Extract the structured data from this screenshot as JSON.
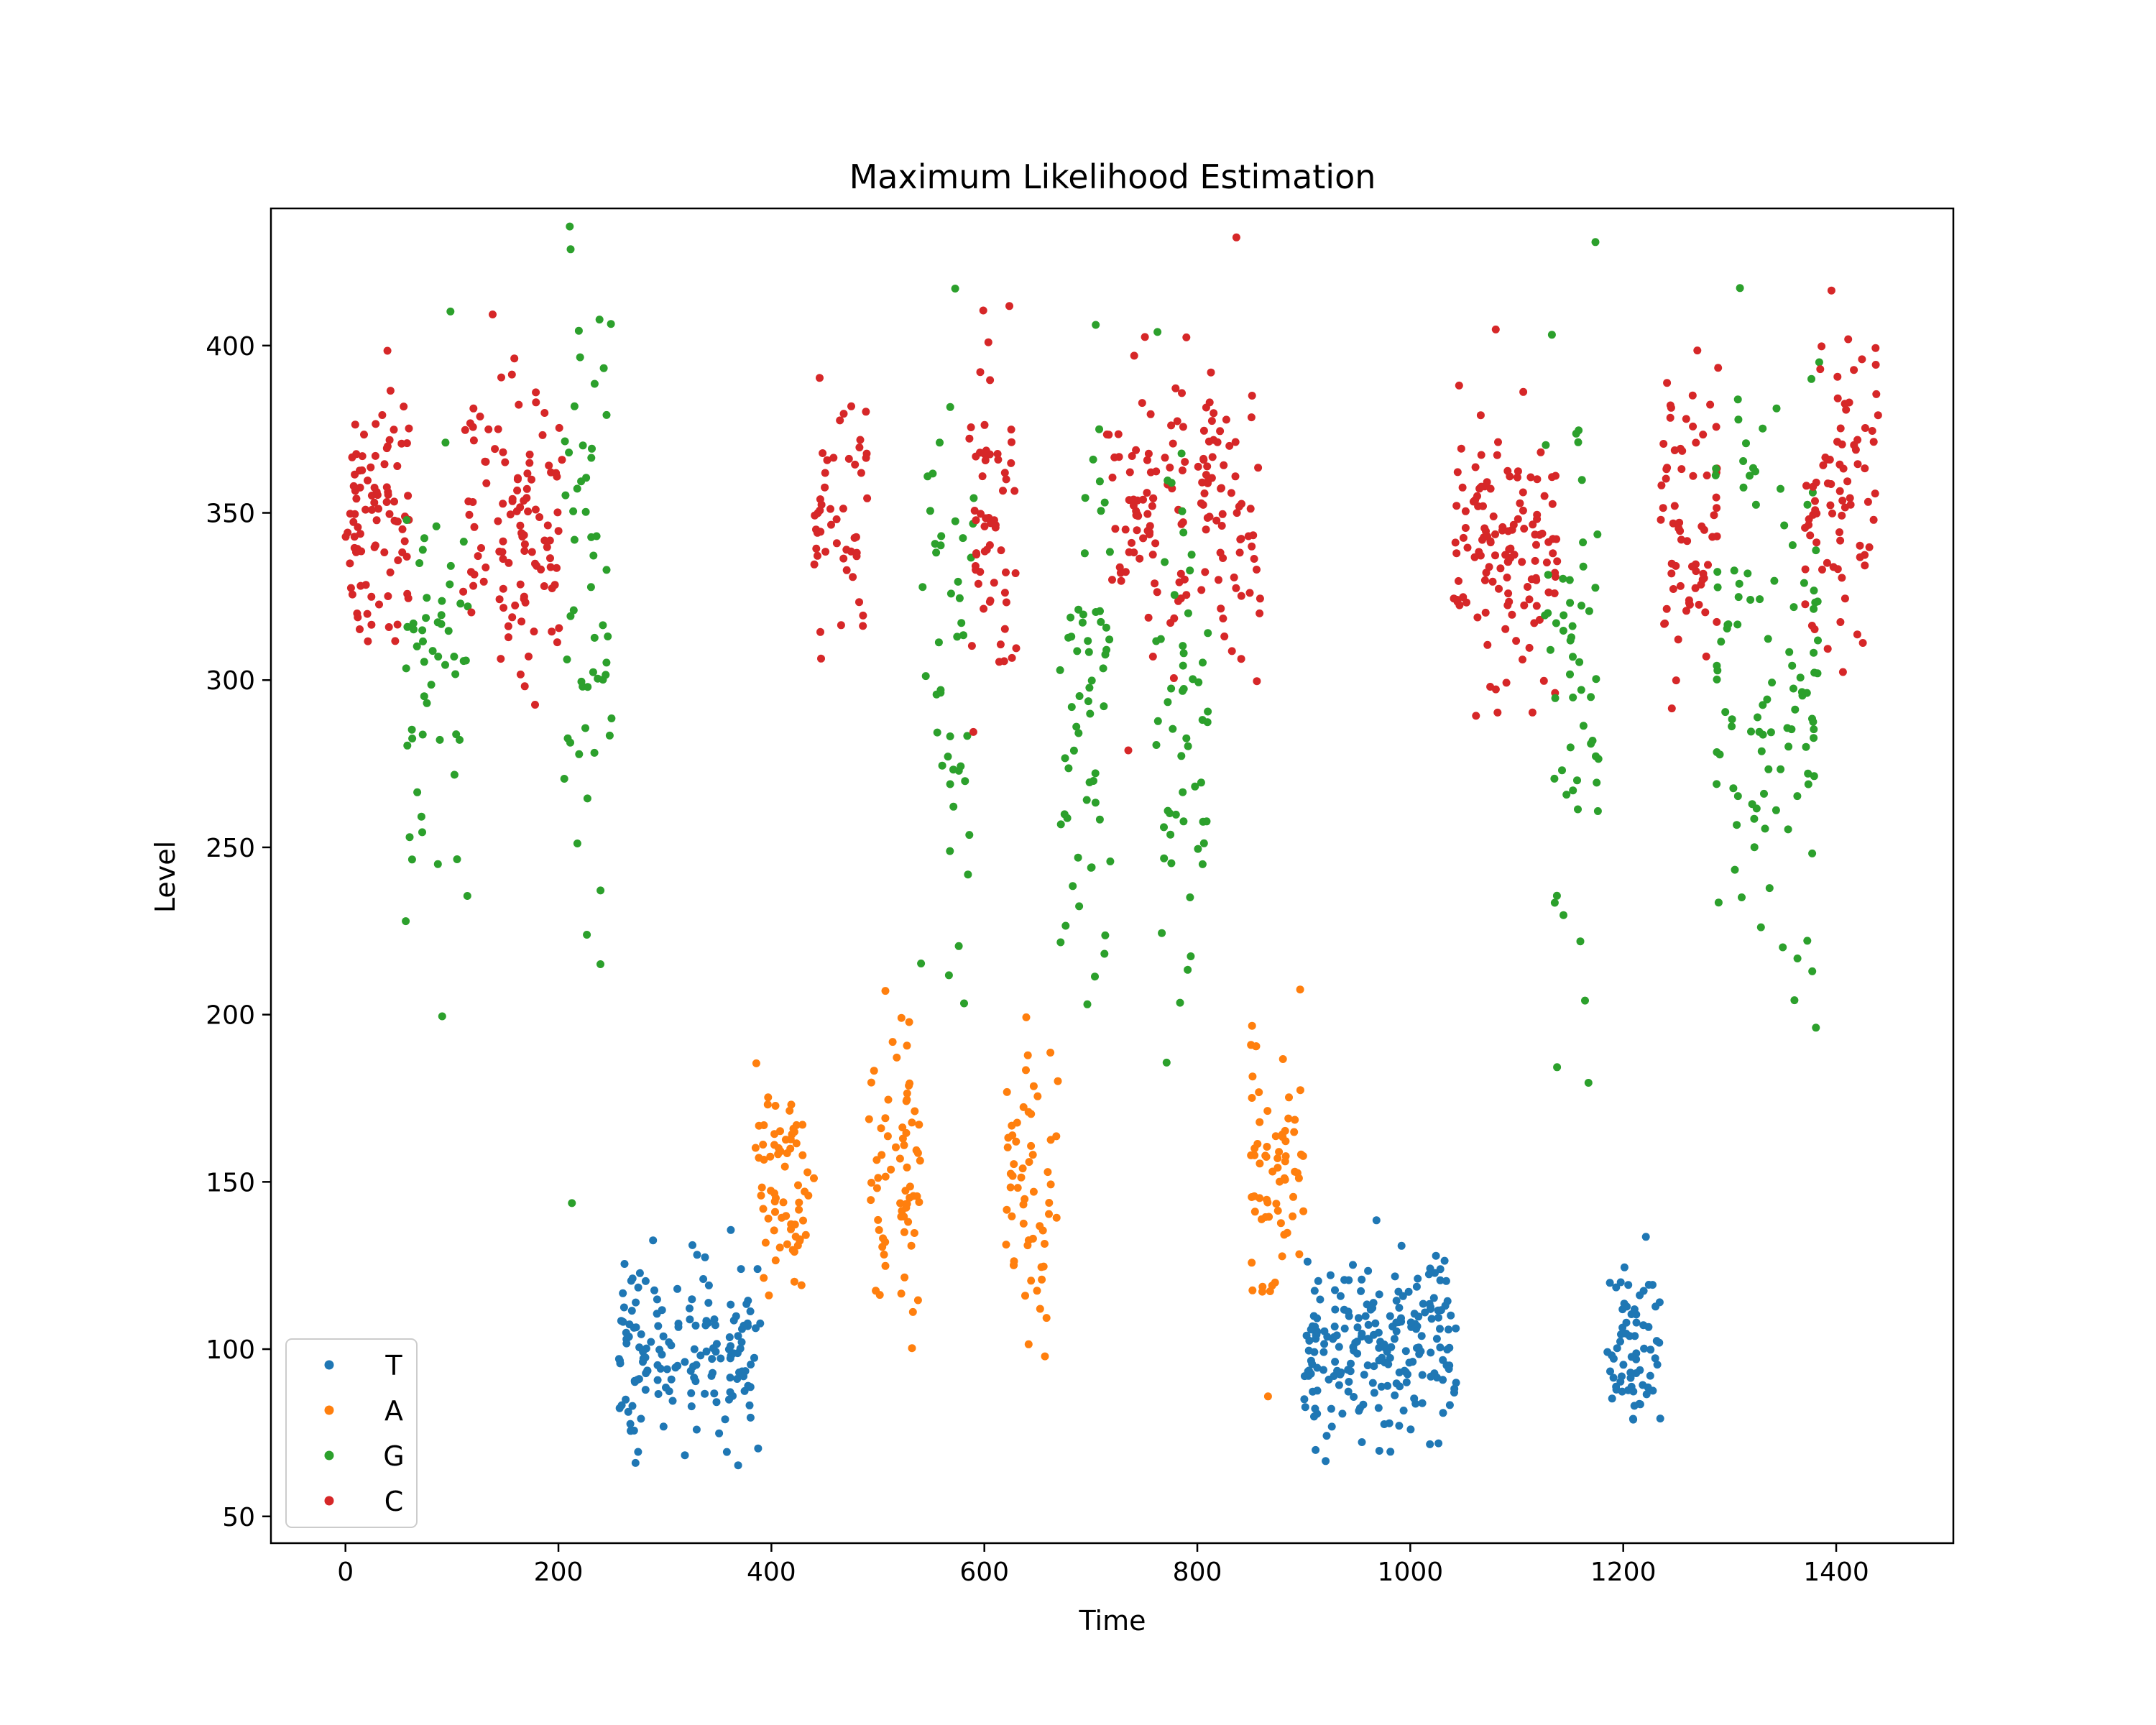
{
  "chart_data": {
    "type": "scatter",
    "title": "Maximum Likelihood Estimation",
    "xlabel": "Time",
    "ylabel": "Level",
    "xlim": [
      -70,
      1510
    ],
    "ylim": [
      42,
      441
    ],
    "xticks": [
      0,
      200,
      400,
      600,
      800,
      1000,
      1200,
      1400
    ],
    "yticks": [
      50,
      100,
      150,
      200,
      250,
      300,
      350,
      400
    ],
    "grid": false,
    "legend": "lower-left",
    "segments": [
      {
        "series": "C",
        "x0": 0,
        "x1": 60,
        "center": 350,
        "spread": 18,
        "n": 90
      },
      {
        "series": "G",
        "x0": 55,
        "x1": 115,
        "center": 300,
        "spread": 40,
        "n": 55
      },
      {
        "series": "C",
        "x0": 110,
        "x1": 205,
        "center": 347,
        "spread": 20,
        "n": 110
      },
      {
        "series": "G",
        "x0": 205,
        "x1": 250,
        "center": 310,
        "spread": 55,
        "n": 55
      },
      {
        "series": "T",
        "x0": 255,
        "x1": 390,
        "center": 102,
        "spread": 13,
        "n": 160
      },
      {
        "series": "A",
        "x0": 385,
        "x1": 440,
        "center": 150,
        "spread": 20,
        "n": 70
      },
      {
        "series": "C",
        "x0": 440,
        "x1": 490,
        "center": 352,
        "spread": 22,
        "n": 50
      },
      {
        "series": "A",
        "x0": 490,
        "x1": 540,
        "center": 155,
        "spread": 22,
        "n": 70
      },
      {
        "series": "G",
        "x0": 540,
        "x1": 590,
        "center": 300,
        "spread": 45,
        "n": 45
      },
      {
        "series": "C",
        "x0": 585,
        "x1": 630,
        "center": 350,
        "spread": 22,
        "n": 60
      },
      {
        "series": "A",
        "x0": 620,
        "x1": 670,
        "center": 148,
        "spread": 22,
        "n": 60
      },
      {
        "series": "G",
        "x0": 670,
        "x1": 720,
        "center": 290,
        "spread": 50,
        "n": 60
      },
      {
        "series": "C",
        "x0": 715,
        "x1": 790,
        "center": 350,
        "spread": 22,
        "n": 80
      },
      {
        "series": "G",
        "x0": 760,
        "x1": 810,
        "center": 290,
        "spread": 50,
        "n": 55
      },
      {
        "series": "C",
        "x0": 800,
        "x1": 860,
        "center": 355,
        "spread": 22,
        "n": 70
      },
      {
        "series": "A",
        "x0": 850,
        "x1": 900,
        "center": 155,
        "spread": 22,
        "n": 70
      },
      {
        "series": "T",
        "x0": 900,
        "x1": 1045,
        "center": 100,
        "spread": 14,
        "n": 220
      },
      {
        "series": "C",
        "x0": 1040,
        "x1": 1140,
        "center": 338,
        "spread": 20,
        "n": 130
      },
      {
        "series": "G",
        "x0": 1125,
        "x1": 1180,
        "center": 300,
        "spread": 45,
        "n": 55
      },
      {
        "series": "T",
        "x0": 1185,
        "x1": 1235,
        "center": 95,
        "spread": 13,
        "n": 70
      },
      {
        "series": "C",
        "x0": 1235,
        "x1": 1290,
        "center": 350,
        "spread": 22,
        "n": 70
      },
      {
        "series": "G",
        "x0": 1285,
        "x1": 1385,
        "center": 295,
        "spread": 45,
        "n": 110
      },
      {
        "series": "C",
        "x0": 1370,
        "x1": 1440,
        "center": 355,
        "spread": 22,
        "n": 80
      }
    ],
    "series": [
      {
        "name": "T",
        "color": "#1f77b4"
      },
      {
        "name": "A",
        "color": "#ff7f0e"
      },
      {
        "name": "G",
        "color": "#2ca02c"
      },
      {
        "name": "C",
        "color": "#d62728"
      }
    ]
  }
}
